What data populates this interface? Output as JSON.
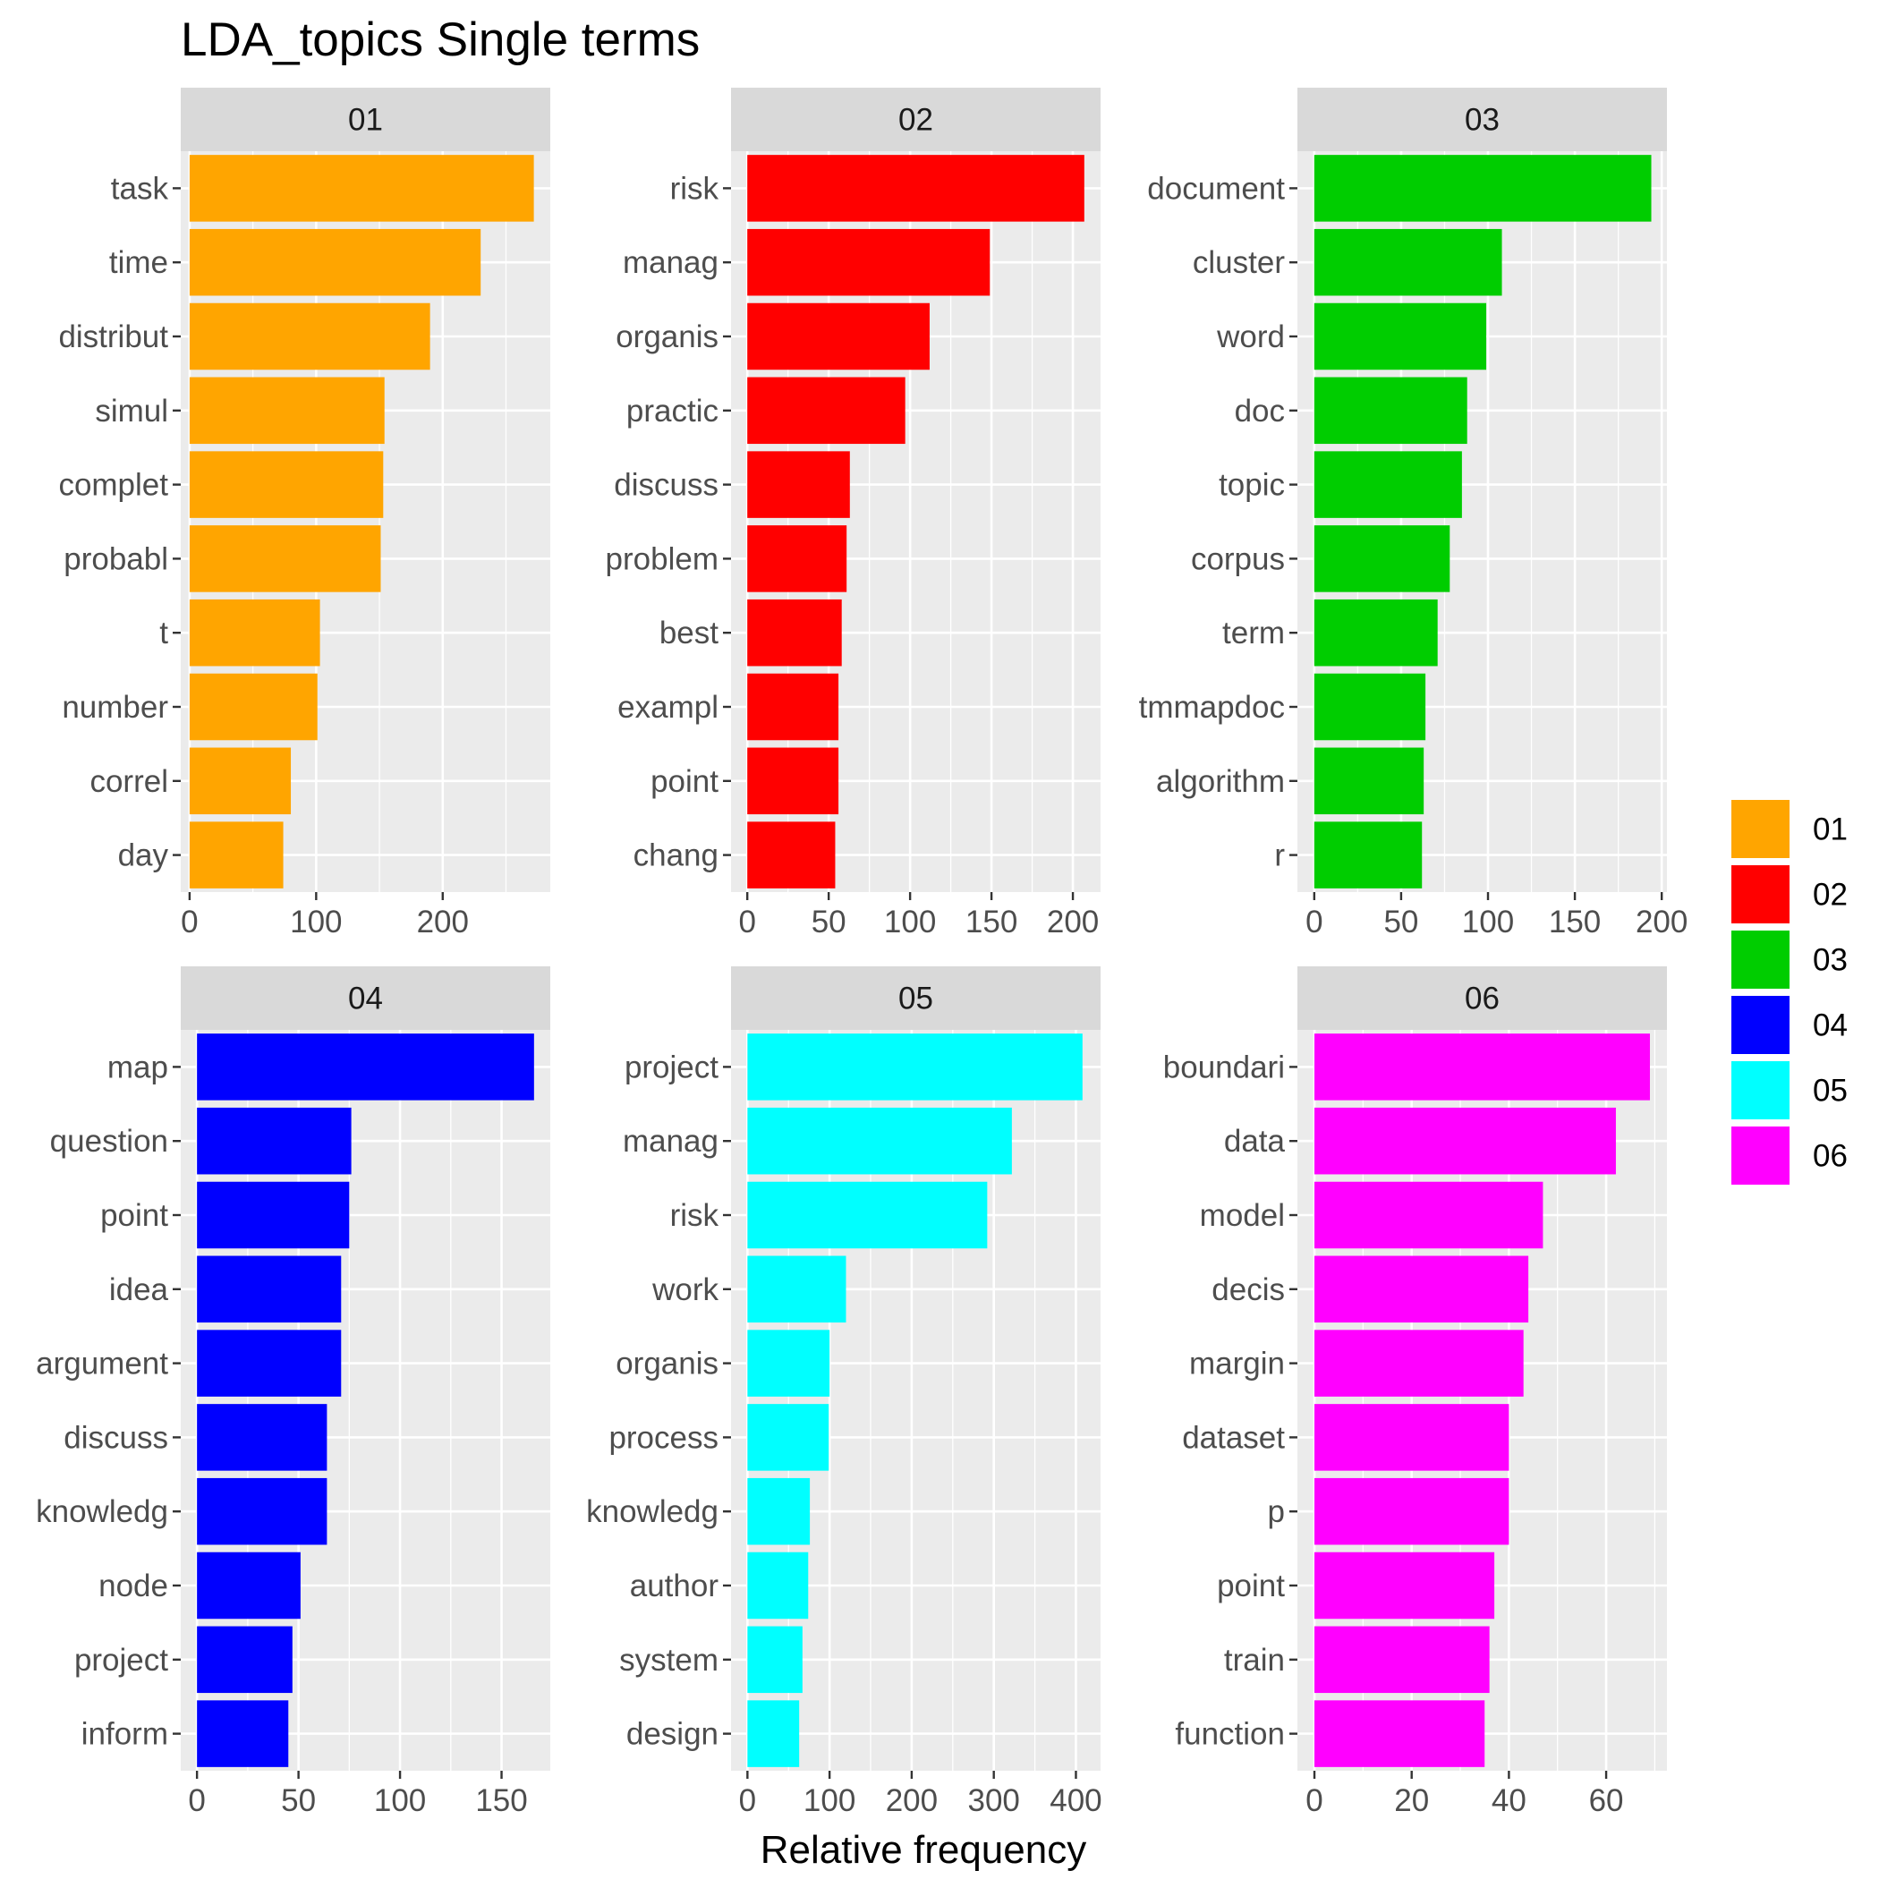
{
  "chart_data": {
    "type": "bar",
    "title": "LDA_topics Single terms",
    "xlabel": "Relative frequency",
    "ylabel": "",
    "orientation": "horizontal",
    "facet_layout": "3 columns x 2 rows",
    "legend_position": "right",
    "grid": true,
    "legend": [
      {
        "name": "01",
        "color": "#FFA500"
      },
      {
        "name": "02",
        "color": "#FF0000"
      },
      {
        "name": "03",
        "color": "#00CD00"
      },
      {
        "name": "04",
        "color": "#0000FF"
      },
      {
        "name": "05",
        "color": "#00FFFF"
      },
      {
        "name": "06",
        "color": "#FF00FF"
      }
    ],
    "panels": [
      {
        "name": "01",
        "color": "#FFA500",
        "xlim": [
          -7,
          285
        ],
        "xticks": [
          0,
          100,
          200
        ],
        "xminor": [
          50,
          150,
          250
        ],
        "categories": [
          "task",
          "time",
          "distribut",
          "simul",
          "complet",
          "probabl",
          "t",
          "number",
          "correl",
          "day"
        ],
        "values": [
          272,
          230,
          190,
          154,
          153,
          151,
          103,
          101,
          80,
          74
        ]
      },
      {
        "name": "02",
        "color": "#FF0000",
        "xlim": [
          -10,
          217
        ],
        "xticks": [
          0,
          50,
          100,
          150,
          200
        ],
        "xminor": [
          25,
          75,
          125,
          175
        ],
        "categories": [
          "risk",
          "manag",
          "organis",
          "practic",
          "discuss",
          "problem",
          "best",
          "exampl",
          "point",
          "chang"
        ],
        "values": [
          207,
          149,
          112,
          97,
          63,
          61,
          58,
          56,
          56,
          54
        ]
      },
      {
        "name": "03",
        "color": "#00CD00",
        "xlim": [
          -9.7,
          203
        ],
        "xticks": [
          0,
          50,
          100,
          150,
          200
        ],
        "xminor": [
          25,
          75,
          125,
          175
        ],
        "categories": [
          "document",
          "cluster",
          "word",
          "doc",
          "topic",
          "corpus",
          "term",
          "tmmapdoc",
          "algorithm",
          "r"
        ],
        "values": [
          194,
          108,
          99,
          88,
          85,
          78,
          71,
          64,
          63,
          62
        ]
      },
      {
        "name": "04",
        "color": "#0000FF",
        "xlim": [
          -8,
          174
        ],
        "xticks": [
          0,
          50,
          100,
          150
        ],
        "xminor": [
          25,
          75,
          125
        ],
        "categories": [
          "map",
          "question",
          "point",
          "idea",
          "argument",
          "discuss",
          "knowledg",
          "node",
          "project",
          "inform"
        ],
        "values": [
          166,
          76,
          75,
          71,
          71,
          64,
          64,
          51,
          47,
          45
        ]
      },
      {
        "name": "05",
        "color": "#00FFFF",
        "xlim": [
          -20,
          430
        ],
        "xticks": [
          0,
          100,
          200,
          300,
          400
        ],
        "xminor": [
          50,
          150,
          250,
          350
        ],
        "categories": [
          "project",
          "manag",
          "risk",
          "work",
          "organis",
          "process",
          "knowledg",
          "author",
          "system",
          "design"
        ],
        "values": [
          408,
          322,
          292,
          120,
          100,
          99,
          76,
          74,
          67,
          63
        ]
      },
      {
        "name": "06",
        "color": "#FF00FF",
        "xlim": [
          -3.5,
          72.5
        ],
        "xticks": [
          0,
          20,
          40,
          60
        ],
        "xminor": [
          10,
          30,
          50,
          70
        ],
        "categories": [
          "boundari",
          "data",
          "model",
          "decis",
          "margin",
          "dataset",
          "p",
          "point",
          "train",
          "function"
        ],
        "values": [
          69,
          62,
          47,
          44,
          43,
          40,
          40,
          37,
          36,
          35
        ]
      }
    ]
  }
}
